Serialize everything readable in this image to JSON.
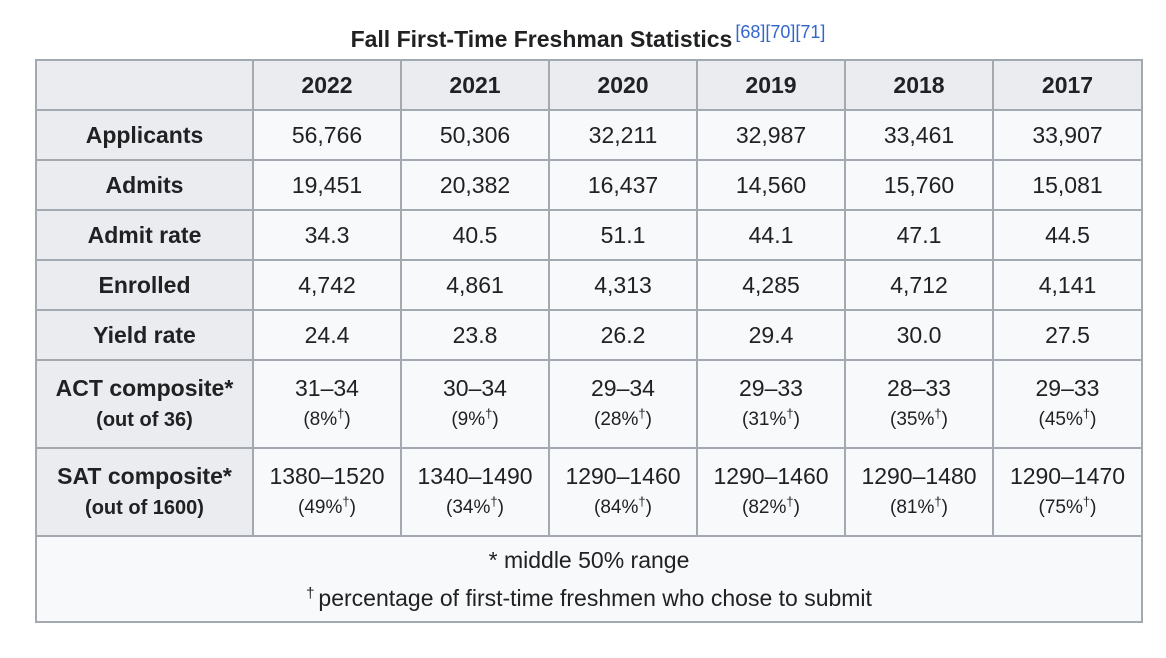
{
  "title": "Fall First-Time Freshman Statistics",
  "refs": [
    "[68]",
    "[70]",
    "[71]"
  ],
  "years": [
    "2022",
    "2021",
    "2020",
    "2019",
    "2018",
    "2017"
  ],
  "rows": [
    {
      "label": "Applicants",
      "values": [
        "56,766",
        "50,306",
        "32,211",
        "32,987",
        "33,461",
        "33,907"
      ]
    },
    {
      "label": "Admits",
      "values": [
        "19,451",
        "20,382",
        "16,437",
        "14,560",
        "15,760",
        "15,081"
      ]
    },
    {
      "label": "Admit rate",
      "values": [
        "34.3",
        "40.5",
        "51.1",
        "44.1",
        "47.1",
        "44.5"
      ]
    },
    {
      "label": "Enrolled",
      "values": [
        "4,742",
        "4,861",
        "4,313",
        "4,285",
        "4,712",
        "4,141"
      ]
    },
    {
      "label": "Yield rate",
      "values": [
        "24.4",
        "23.8",
        "26.2",
        "29.4",
        "30.0",
        "27.5"
      ]
    }
  ],
  "act": {
    "label": "ACT composite*",
    "sublabel": "(out of 36)",
    "ranges": [
      "31–34",
      "30–34",
      "29–34",
      "29–33",
      "28–33",
      "29–33"
    ],
    "pcts": [
      "(8%",
      "(9%",
      "(28%",
      "(31%",
      "(35%",
      "(45%"
    ]
  },
  "sat": {
    "label": "SAT composite*",
    "sublabel": "(out of 1600)",
    "ranges": [
      "1380–1520",
      "1340–1490",
      "1290–1460",
      "1290–1460",
      "1290–1480",
      "1290–1470"
    ],
    "pcts": [
      "(49%",
      "(34%",
      "(84%",
      "(82%",
      "(81%",
      "(75%"
    ]
  },
  "dagger": "†",
  "close_paren": ")",
  "footnote": {
    "star": "* middle 50% range",
    "dagger_text": "percentage of first-time freshmen who chose to submit"
  }
}
